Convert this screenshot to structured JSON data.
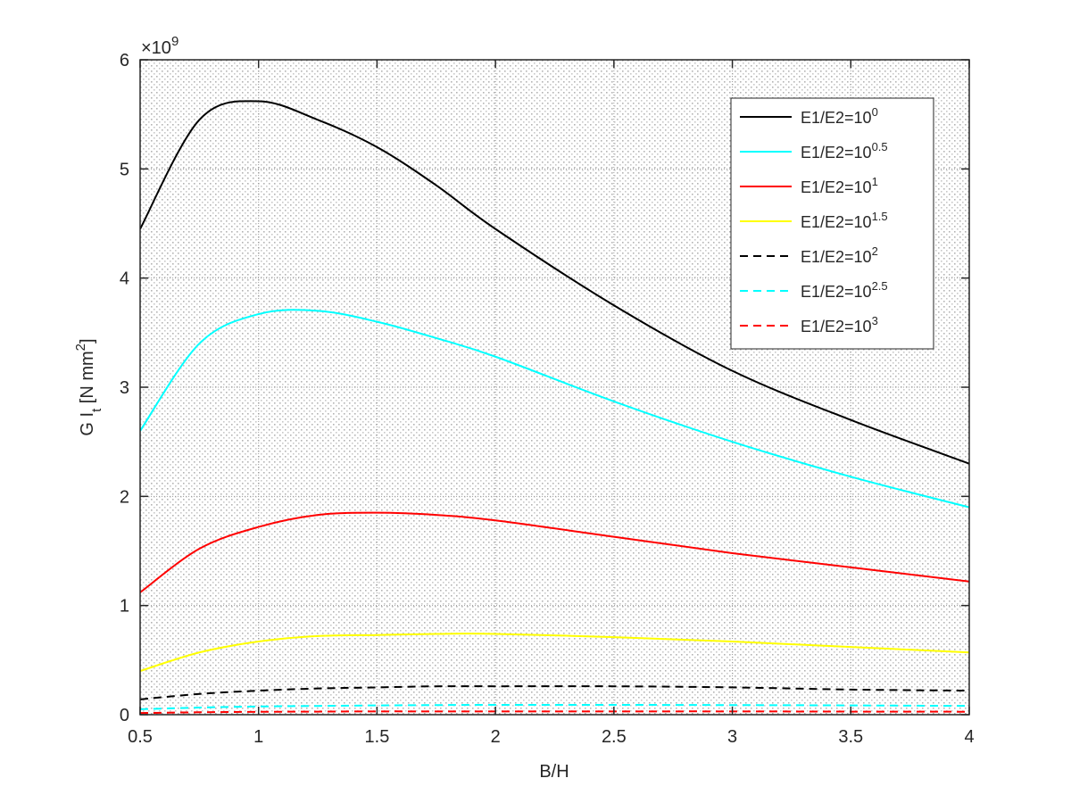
{
  "chart_data": {
    "type": "line",
    "title": "",
    "xlabel": "B/H",
    "ylabel": "G I_t [N mm^2]",
    "ylabel_parts": {
      "main": "G I",
      "sub": "t",
      "mid": " [N mm",
      "sup": "2",
      "end": "]"
    },
    "y_exponent": {
      "base": "×10",
      "power": "9"
    },
    "xlim": [
      0.5,
      4
    ],
    "ylim": [
      0,
      6
    ],
    "xticks": [
      0.5,
      1,
      1.5,
      2,
      2.5,
      3,
      3.5,
      4
    ],
    "xtick_labels": [
      "0.5",
      "1",
      "1.5",
      "2",
      "2.5",
      "3",
      "3.5",
      "4"
    ],
    "yticks": [
      0,
      1,
      2,
      3,
      4,
      5,
      6
    ],
    "ytick_labels": [
      "0",
      "1",
      "2",
      "3",
      "4",
      "5",
      "6"
    ],
    "grid": "minor dotted",
    "legend_position": "top-right",
    "x": [
      0.5,
      0.75,
      1.0,
      1.25,
      1.5,
      1.75,
      2.0,
      2.5,
      3.0,
      3.5,
      4.0
    ],
    "series": [
      {
        "name": "E1/E2=10^0",
        "label_base": "E1/E2=10",
        "label_exp": "0",
        "color": "#000000",
        "dash": "solid",
        "values": [
          4.45,
          5.45,
          5.62,
          5.45,
          5.2,
          4.85,
          4.45,
          3.75,
          3.15,
          2.7,
          2.3
        ]
      },
      {
        "name": "E1/E2=10^0.5",
        "label_base": "E1/E2=10",
        "label_exp": "0.5",
        "color": "#00ffff",
        "dash": "solid",
        "values": [
          2.6,
          3.4,
          3.67,
          3.7,
          3.6,
          3.45,
          3.28,
          2.87,
          2.5,
          2.18,
          1.9
        ]
      },
      {
        "name": "E1/E2=10^1",
        "label_base": "E1/E2=10",
        "label_exp": "1",
        "color": "#ff0000",
        "dash": "solid",
        "values": [
          1.12,
          1.52,
          1.72,
          1.83,
          1.85,
          1.83,
          1.78,
          1.63,
          1.48,
          1.35,
          1.22
        ]
      },
      {
        "name": "E1/E2=10^1.5",
        "label_base": "E1/E2=10",
        "label_exp": "1.5",
        "color": "#ffff00",
        "dash": "solid",
        "values": [
          0.4,
          0.57,
          0.67,
          0.72,
          0.73,
          0.74,
          0.74,
          0.71,
          0.67,
          0.62,
          0.57
        ]
      },
      {
        "name": "E1/E2=10^2",
        "label_base": "E1/E2=10",
        "label_exp": "2",
        "color": "#000000",
        "dash": "dashed",
        "values": [
          0.14,
          0.19,
          0.22,
          0.24,
          0.25,
          0.26,
          0.26,
          0.26,
          0.25,
          0.23,
          0.22
        ]
      },
      {
        "name": "E1/E2=10^2.5",
        "label_base": "E1/E2=10",
        "label_exp": "2.5",
        "color": "#00ffff",
        "dash": "dashed",
        "values": [
          0.05,
          0.065,
          0.075,
          0.08,
          0.085,
          0.088,
          0.09,
          0.09,
          0.088,
          0.085,
          0.08
        ]
      },
      {
        "name": "E1/E2=10^3",
        "label_base": "E1/E2=10",
        "label_exp": "3",
        "color": "#ff0000",
        "dash": "dashed",
        "values": [
          0.015,
          0.022,
          0.026,
          0.028,
          0.03,
          0.03,
          0.03,
          0.03,
          0.03,
          0.028,
          0.027
        ]
      }
    ]
  }
}
